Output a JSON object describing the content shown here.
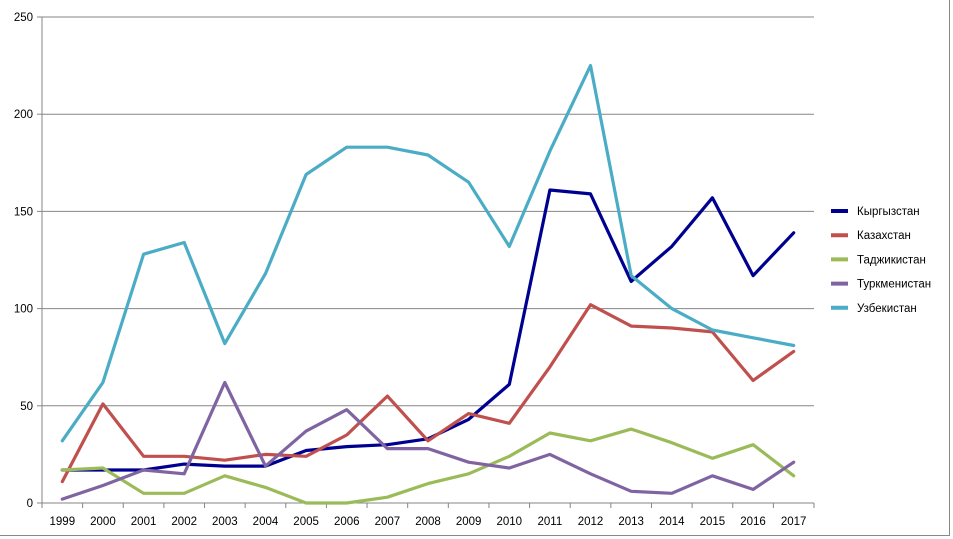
{
  "chart_data": {
    "type": "line",
    "title": "",
    "xlabel": "",
    "ylabel": "",
    "ylim": [
      0,
      250
    ],
    "yticks": [
      0,
      50,
      100,
      150,
      200,
      250
    ],
    "grid": true,
    "legend_position": "right",
    "categories": [
      "1999",
      "2000",
      "2001",
      "2002",
      "2003",
      "2004",
      "2005",
      "2006",
      "2007",
      "2008",
      "2009",
      "2010",
      "2011",
      "2012",
      "2013",
      "2014",
      "2015",
      "2016",
      "2017"
    ],
    "series": [
      {
        "name": "Кыргызстан",
        "color": "#000090",
        "values": [
          17,
          17,
          17,
          20,
          19,
          19,
          27,
          29,
          30,
          33,
          43,
          61,
          161,
          159,
          114,
          132,
          157,
          117,
          139
        ]
      },
      {
        "name": "Казахстан",
        "color": "#c0504d",
        "values": [
          11,
          51,
          24,
          24,
          22,
          25,
          24,
          35,
          55,
          32,
          46,
          41,
          70,
          102,
          91,
          90,
          88,
          63,
          78
        ]
      },
      {
        "name": "Таджикистан",
        "color": "#9bbb59",
        "values": [
          17,
          18,
          5,
          5,
          14,
          8,
          0,
          0,
          3,
          10,
          15,
          24,
          36,
          32,
          38,
          31,
          23,
          30,
          14
        ]
      },
      {
        "name": "Туркменистан",
        "color": "#8064a2",
        "values": [
          2,
          9,
          17,
          15,
          62,
          19,
          37,
          48,
          28,
          28,
          21,
          18,
          25,
          15,
          6,
          5,
          14,
          7,
          21
        ]
      },
      {
        "name": "Узбекистан",
        "color": "#4bacc6",
        "values": [
          32,
          62,
          128,
          134,
          82,
          118,
          169,
          183,
          183,
          179,
          165,
          132,
          181,
          225,
          117,
          100,
          89,
          85,
          81
        ]
      }
    ]
  }
}
